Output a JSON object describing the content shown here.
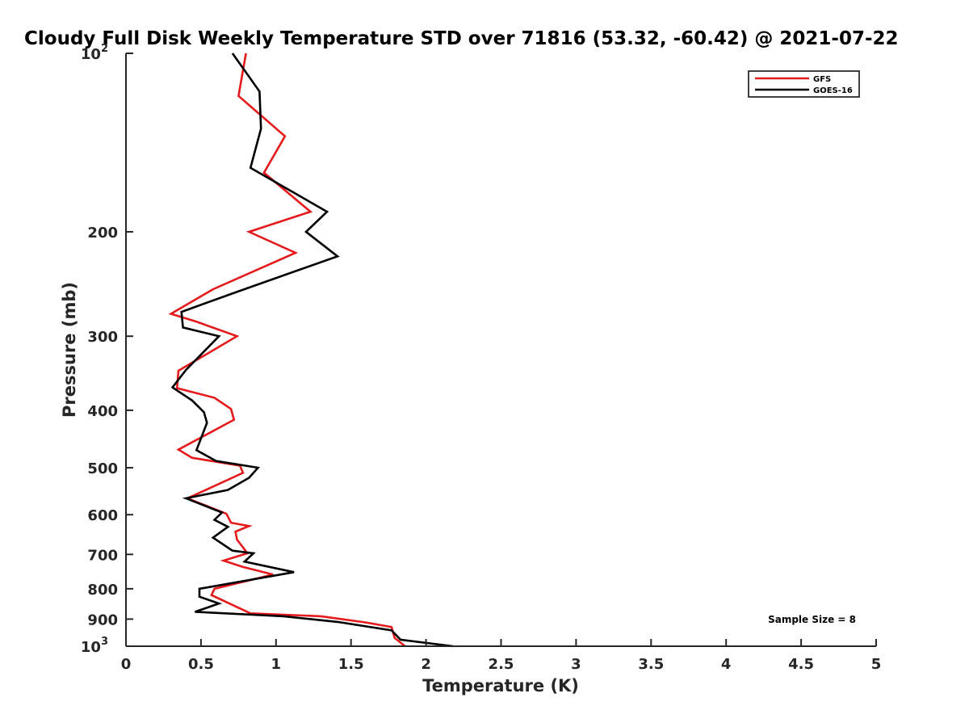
{
  "chart_data": {
    "type": "line",
    "title": "Cloudy Full Disk Weekly Temperature STD over 71816 (53.32, -60.42) @ 2021-07-22",
    "xlabel": "Temperature (K)",
    "ylabel": "Pressure (mb)",
    "xlim": [
      0,
      5
    ],
    "ylim": [
      100,
      1000
    ],
    "y_scale": "log",
    "y_reversed": true,
    "x_ticks": [
      {
        "value": 0,
        "label": "0"
      },
      {
        "value": 0.5,
        "label": "0.5"
      },
      {
        "value": 1,
        "label": "1"
      },
      {
        "value": 1.5,
        "label": "1.5"
      },
      {
        "value": 2,
        "label": "2"
      },
      {
        "value": 2.5,
        "label": "2.5"
      },
      {
        "value": 3,
        "label": "3"
      },
      {
        "value": 3.5,
        "label": "3.5"
      },
      {
        "value": 4,
        "label": "4"
      },
      {
        "value": 4.5,
        "label": "4.5"
      },
      {
        "value": 5,
        "label": "5"
      }
    ],
    "y_ticks": [
      {
        "value": 100,
        "label": "10",
        "sup": "2"
      },
      {
        "value": 200,
        "label": "200"
      },
      {
        "value": 300,
        "label": "300"
      },
      {
        "value": 400,
        "label": "400"
      },
      {
        "value": 500,
        "label": "500"
      },
      {
        "value": 600,
        "label": "600"
      },
      {
        "value": 700,
        "label": "700"
      },
      {
        "value": 800,
        "label": "800"
      },
      {
        "value": 900,
        "label": "900"
      },
      {
        "value": 1000,
        "label": "10",
        "sup": "3"
      }
    ],
    "grid": false,
    "legend_position": "top-right",
    "annotation": "Sample Size = 8",
    "series": [
      {
        "name": "GFS",
        "color": "#e41a1c",
        "points": [
          {
            "x": 0.8,
            "y": 100
          },
          {
            "x": 0.75,
            "y": 118
          },
          {
            "x": 1.06,
            "y": 138
          },
          {
            "x": 0.92,
            "y": 159
          },
          {
            "x": 1.23,
            "y": 185
          },
          {
            "x": 0.82,
            "y": 200
          },
          {
            "x": 1.13,
            "y": 217
          },
          {
            "x": 0.58,
            "y": 250
          },
          {
            "x": 0.3,
            "y": 275
          },
          {
            "x": 0.46,
            "y": 283
          },
          {
            "x": 0.74,
            "y": 300
          },
          {
            "x": 0.35,
            "y": 343
          },
          {
            "x": 0.34,
            "y": 367
          },
          {
            "x": 0.59,
            "y": 381
          },
          {
            "x": 0.7,
            "y": 398
          },
          {
            "x": 0.72,
            "y": 415
          },
          {
            "x": 0.35,
            "y": 466
          },
          {
            "x": 0.44,
            "y": 481
          },
          {
            "x": 0.76,
            "y": 496
          },
          {
            "x": 0.78,
            "y": 510
          },
          {
            "x": 0.41,
            "y": 563
          },
          {
            "x": 0.67,
            "y": 598
          },
          {
            "x": 0.7,
            "y": 619
          },
          {
            "x": 0.82,
            "y": 627
          },
          {
            "x": 0.73,
            "y": 641
          },
          {
            "x": 0.74,
            "y": 661
          },
          {
            "x": 0.81,
            "y": 697
          },
          {
            "x": 0.65,
            "y": 717
          },
          {
            "x": 0.78,
            "y": 735
          },
          {
            "x": 0.98,
            "y": 757
          },
          {
            "x": 0.59,
            "y": 800
          },
          {
            "x": 0.57,
            "y": 820
          },
          {
            "x": 0.83,
            "y": 880
          },
          {
            "x": 1.3,
            "y": 890
          },
          {
            "x": 1.6,
            "y": 912
          },
          {
            "x": 1.77,
            "y": 928
          },
          {
            "x": 1.79,
            "y": 968
          },
          {
            "x": 1.86,
            "y": 1000
          }
        ]
      },
      {
        "name": "GOES-16",
        "color": "#000000",
        "points": [
          {
            "x": 0.71,
            "y": 100
          },
          {
            "x": 0.89,
            "y": 116
          },
          {
            "x": 0.9,
            "y": 134
          },
          {
            "x": 0.83,
            "y": 156
          },
          {
            "x": 1.34,
            "y": 185
          },
          {
            "x": 1.2,
            "y": 200
          },
          {
            "x": 1.41,
            "y": 220
          },
          {
            "x": 0.75,
            "y": 252
          },
          {
            "x": 0.37,
            "y": 273
          },
          {
            "x": 0.38,
            "y": 290
          },
          {
            "x": 0.62,
            "y": 300
          },
          {
            "x": 0.4,
            "y": 342
          },
          {
            "x": 0.31,
            "y": 366
          },
          {
            "x": 0.44,
            "y": 385
          },
          {
            "x": 0.52,
            "y": 403
          },
          {
            "x": 0.54,
            "y": 420
          },
          {
            "x": 0.47,
            "y": 467
          },
          {
            "x": 0.6,
            "y": 487
          },
          {
            "x": 0.88,
            "y": 500
          },
          {
            "x": 0.82,
            "y": 520
          },
          {
            "x": 0.68,
            "y": 545
          },
          {
            "x": 0.4,
            "y": 563
          },
          {
            "x": 0.64,
            "y": 595
          },
          {
            "x": 0.59,
            "y": 612
          },
          {
            "x": 0.68,
            "y": 629
          },
          {
            "x": 0.58,
            "y": 656
          },
          {
            "x": 0.71,
            "y": 690
          },
          {
            "x": 0.85,
            "y": 697
          },
          {
            "x": 0.79,
            "y": 720
          },
          {
            "x": 1.12,
            "y": 750
          },
          {
            "x": 0.49,
            "y": 800
          },
          {
            "x": 0.49,
            "y": 825
          },
          {
            "x": 0.62,
            "y": 847
          },
          {
            "x": 0.46,
            "y": 875
          },
          {
            "x": 1.05,
            "y": 890
          },
          {
            "x": 1.41,
            "y": 910
          },
          {
            "x": 1.77,
            "y": 940
          },
          {
            "x": 1.83,
            "y": 975
          },
          {
            "x": 2.18,
            "y": 1000
          }
        ]
      }
    ]
  }
}
